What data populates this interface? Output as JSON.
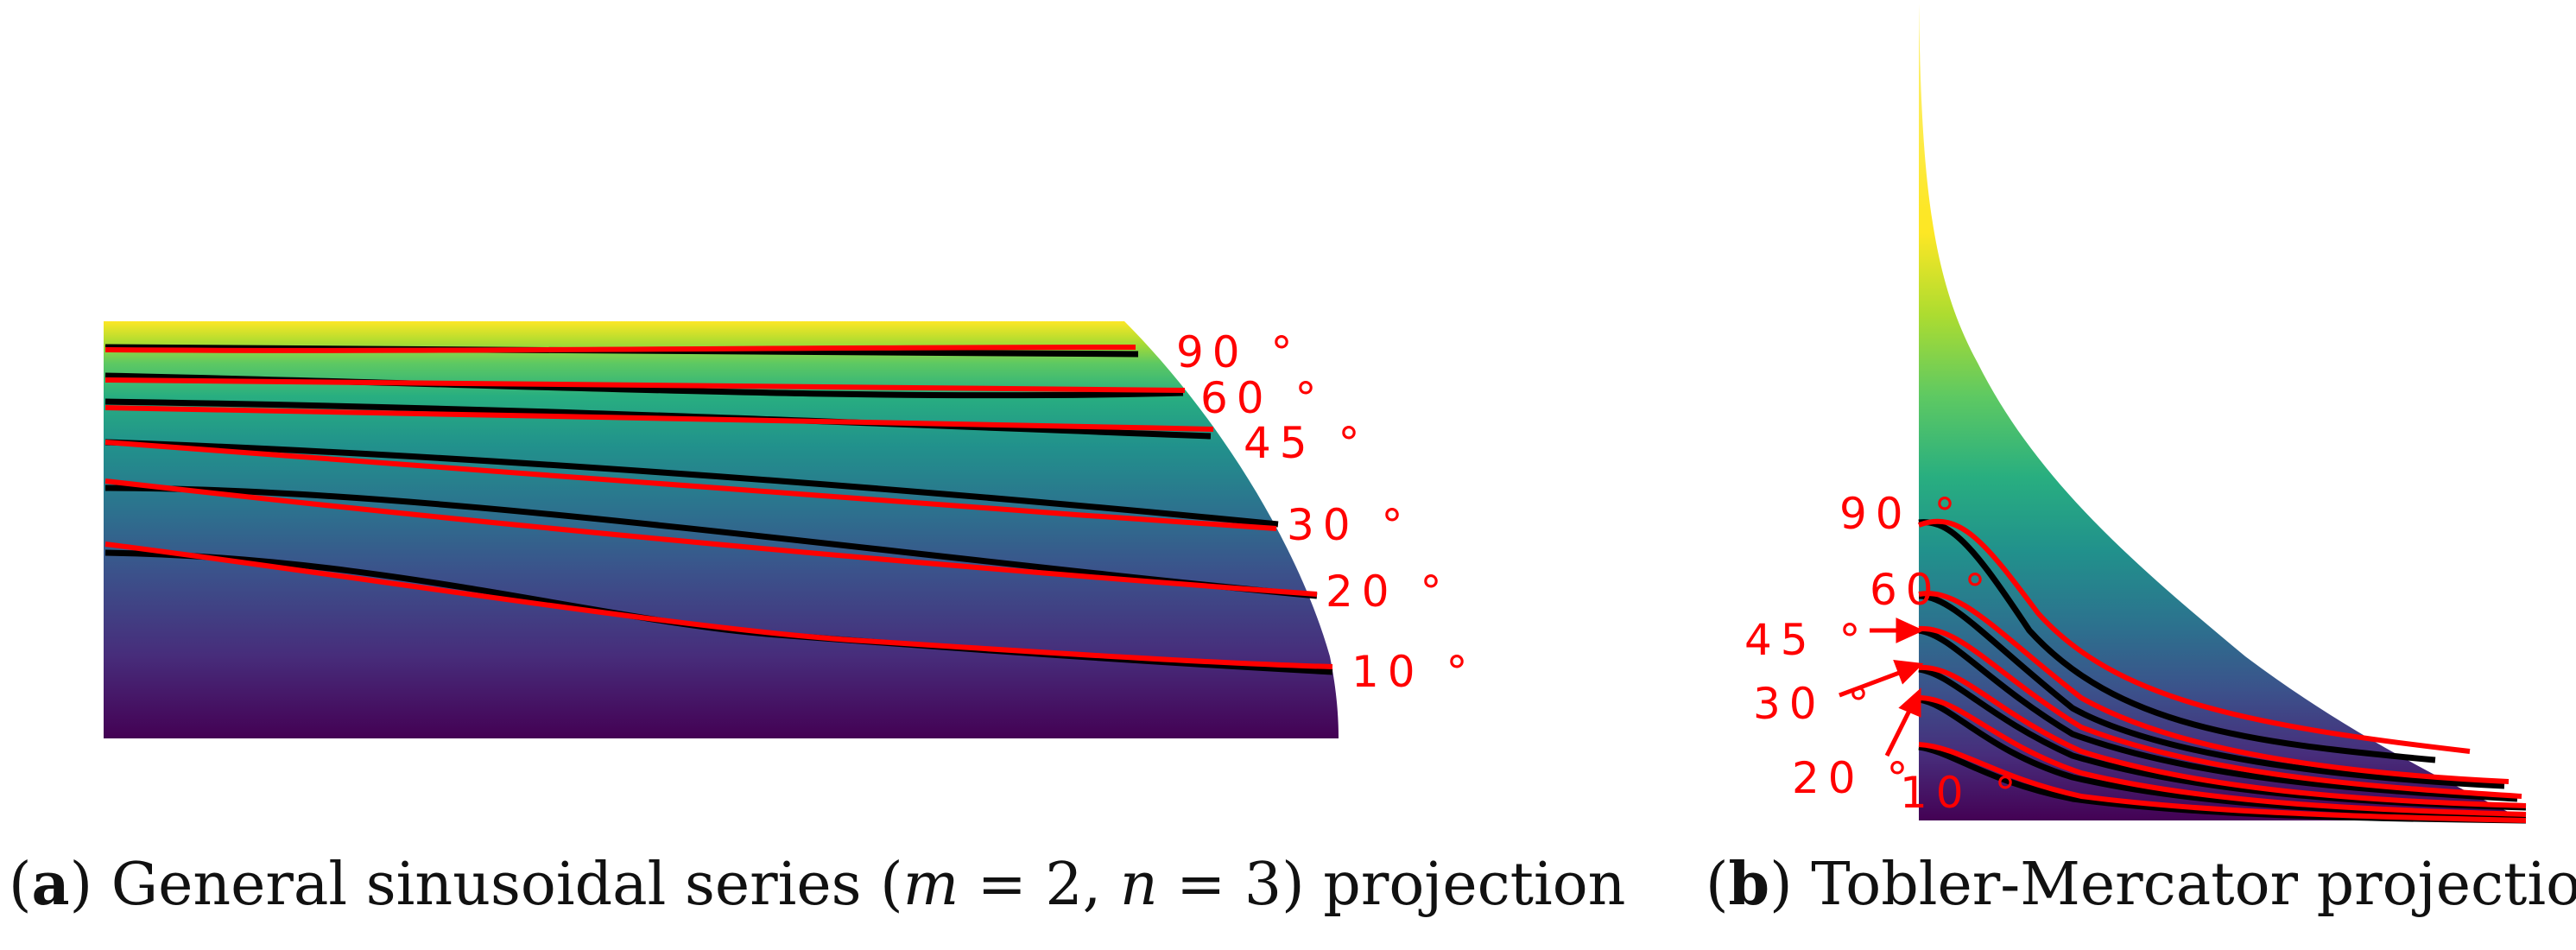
{
  "panel_a": {
    "caption_letter": "a",
    "caption_text": "General sinusoidal series (",
    "caption_m": "m",
    "caption_eq_m": " = 2, ",
    "caption_n": "n",
    "caption_eq_n": " = 3) projection",
    "latitude_labels": [
      "90 °",
      "60 °",
      "45 °",
      "30 °",
      "20 °",
      "10 °"
    ]
  },
  "panel_b": {
    "caption_letter": "b",
    "caption_text": "Tobler-Mercator projection",
    "latitude_labels": [
      "90 °",
      "60 °",
      "45 °",
      "30 °",
      "20 °",
      "10 °"
    ]
  },
  "colors": {
    "label_red": "#ff0000",
    "curve_black": "#000000",
    "colormap": [
      "#440154",
      "#482878",
      "#3e4989",
      "#31688e",
      "#26828e",
      "#1f9e89",
      "#35b779",
      "#6ece58",
      "#b5de2b",
      "#fde725"
    ]
  }
}
